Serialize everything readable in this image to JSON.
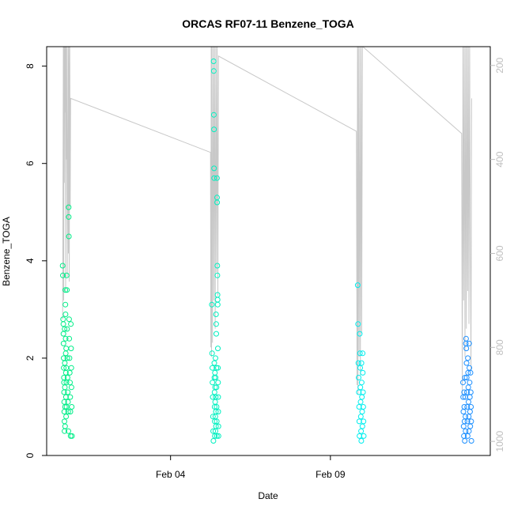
{
  "chart_data": {
    "type": "scatter",
    "title": "ORCAS RF07-11 Benzene_TOGA",
    "xlabel": "Date",
    "ylabel": "Benzene_TOGA",
    "xlim": [
      "2016-01-31T03:00",
      "2016-02-14T00:00"
    ],
    "ylim": [
      0,
      8.4
    ],
    "y_ticks": [
      0,
      2,
      4,
      6,
      8
    ],
    "x_ticks": [
      {
        "date": "2016-02-04",
        "label": "Feb 04"
      },
      {
        "date": "2016-02-09",
        "label": "Feb 09"
      }
    ],
    "y2lim": [
      1030,
      160
    ],
    "y2_ticks": [
      200,
      400,
      600,
      800,
      1000
    ],
    "y2_reversed": true,
    "y2_color": "#bebebe",
    "grid": false,
    "legend": "none",
    "point_marker": "open-circle",
    "series": [
      {
        "color": "#00ee88",
        "points": [
          [
            "2016-01-31T15:00",
            3.9
          ],
          [
            "2016-01-31T15:10",
            3.7
          ],
          [
            "2016-01-31T15:20",
            2.8
          ],
          [
            "2016-01-31T15:30",
            2.7
          ],
          [
            "2016-01-31T15:35",
            2.5
          ],
          [
            "2016-01-31T15:40",
            2.3
          ],
          [
            "2016-01-31T15:45",
            2.0
          ],
          [
            "2016-01-31T15:50",
            1.8
          ],
          [
            "2016-01-31T15:55",
            1.6
          ],
          [
            "2016-01-31T16:00",
            1.5
          ],
          [
            "2016-01-31T16:05",
            1.3
          ],
          [
            "2016-01-31T16:10",
            1.1
          ],
          [
            "2016-01-31T16:15",
            0.9
          ],
          [
            "2016-01-31T16:20",
            0.7
          ],
          [
            "2016-01-31T16:25",
            0.5
          ],
          [
            "2016-01-31T16:30",
            2.6
          ],
          [
            "2016-01-31T16:35",
            1.9
          ],
          [
            "2016-01-31T16:40",
            1.4
          ],
          [
            "2016-01-31T16:45",
            1.0
          ],
          [
            "2016-01-31T16:50",
            0.6
          ],
          [
            "2016-01-31T17:00",
            3.4
          ],
          [
            "2016-01-31T17:05",
            3.1
          ],
          [
            "2016-01-31T17:10",
            2.9
          ],
          [
            "2016-01-31T17:15",
            2.4
          ],
          [
            "2016-01-31T17:20",
            2.1
          ],
          [
            "2016-01-31T17:25",
            1.7
          ],
          [
            "2016-01-31T17:30",
            1.2
          ],
          [
            "2016-01-31T17:35",
            0.8
          ],
          [
            "2016-01-31T17:40",
            2.2
          ],
          [
            "2016-01-31T17:45",
            1.8
          ],
          [
            "2016-01-31T17:50",
            1.5
          ],
          [
            "2016-01-31T17:55",
            1.0
          ],
          [
            "2016-01-31T18:00",
            3.7
          ],
          [
            "2016-01-31T18:10",
            3.4
          ],
          [
            "2016-01-31T18:20",
            2.6
          ],
          [
            "2016-01-31T18:30",
            2.0
          ],
          [
            "2016-01-31T18:40",
            1.6
          ],
          [
            "2016-01-31T18:50",
            1.3
          ],
          [
            "2016-01-31T19:00",
            1.1
          ],
          [
            "2016-01-31T19:10",
            0.9
          ],
          [
            "2016-01-31T19:20",
            0.5
          ],
          [
            "2016-01-31T19:30",
            5.1
          ],
          [
            "2016-01-31T19:35",
            4.9
          ],
          [
            "2016-01-31T19:40",
            4.5
          ],
          [
            "2016-01-31T19:50",
            2.8
          ],
          [
            "2016-01-31T20:00",
            2.4
          ],
          [
            "2016-01-31T20:10",
            2.0
          ],
          [
            "2016-01-31T20:20",
            1.7
          ],
          [
            "2016-01-31T20:30",
            1.5
          ],
          [
            "2016-01-31T20:40",
            1.2
          ],
          [
            "2016-01-31T20:50",
            0.9
          ],
          [
            "2016-01-31T21:00",
            0.4
          ],
          [
            "2016-01-31T21:10",
            2.7
          ],
          [
            "2016-01-31T21:20",
            2.2
          ],
          [
            "2016-01-31T21:30",
            1.8
          ],
          [
            "2016-01-31T21:40",
            1.4
          ],
          [
            "2016-01-31T21:50",
            1.0
          ],
          [
            "2016-01-31T22:00",
            0.4
          ]
        ]
      },
      {
        "color": "#00f0c0",
        "points": [
          [
            "2016-02-05T07:00",
            3.1
          ],
          [
            "2016-02-05T07:10",
            2.1
          ],
          [
            "2016-02-05T07:20",
            1.8
          ],
          [
            "2016-02-05T07:30",
            1.5
          ],
          [
            "2016-02-05T07:40",
            1.2
          ],
          [
            "2016-02-05T07:50",
            0.8
          ],
          [
            "2016-02-05T08:00",
            0.5
          ],
          [
            "2016-02-05T08:10",
            0.3
          ],
          [
            "2016-02-05T08:20",
            8.1
          ],
          [
            "2016-02-05T08:25",
            7.9
          ],
          [
            "2016-02-05T08:30",
            7.0
          ],
          [
            "2016-02-05T08:35",
            6.7
          ],
          [
            "2016-02-05T08:40",
            5.9
          ],
          [
            "2016-02-05T08:45",
            5.7
          ],
          [
            "2016-02-05T08:50",
            1.9
          ],
          [
            "2016-02-05T08:55",
            1.6
          ],
          [
            "2016-02-05T09:00",
            1.3
          ],
          [
            "2016-02-05T09:05",
            1.0
          ],
          [
            "2016-02-05T09:10",
            0.7
          ],
          [
            "2016-02-05T09:15",
            0.4
          ],
          [
            "2016-02-05T09:20",
            1.7
          ],
          [
            "2016-02-05T09:25",
            1.4
          ],
          [
            "2016-02-05T09:30",
            1.1
          ],
          [
            "2016-02-05T09:35",
            0.8
          ],
          [
            "2016-02-05T09:40",
            0.5
          ],
          [
            "2016-02-05T09:45",
            2.0
          ],
          [
            "2016-02-05T09:50",
            1.6
          ],
          [
            "2016-02-05T09:55",
            1.2
          ],
          [
            "2016-02-05T10:00",
            0.9
          ],
          [
            "2016-02-05T10:05",
            0.6
          ],
          [
            "2016-02-05T10:10",
            2.9
          ],
          [
            "2016-02-05T10:15",
            2.7
          ],
          [
            "2016-02-05T10:20",
            2.5
          ],
          [
            "2016-02-05T10:25",
            1.8
          ],
          [
            "2016-02-05T10:30",
            1.4
          ],
          [
            "2016-02-05T10:35",
            1.0
          ],
          [
            "2016-02-05T10:40",
            0.7
          ],
          [
            "2016-02-05T10:45",
            0.4
          ],
          [
            "2016-02-05T10:50",
            5.7
          ],
          [
            "2016-02-05T10:55",
            5.3
          ],
          [
            "2016-02-05T11:00",
            5.2
          ],
          [
            "2016-02-05T11:05",
            3.9
          ],
          [
            "2016-02-05T11:10",
            3.7
          ],
          [
            "2016-02-05T11:15",
            3.3
          ],
          [
            "2016-02-05T11:20",
            3.2
          ],
          [
            "2016-02-05T11:25",
            3.1
          ],
          [
            "2016-02-05T11:30",
            2.2
          ],
          [
            "2016-02-05T11:35",
            1.8
          ],
          [
            "2016-02-05T11:40",
            1.5
          ],
          [
            "2016-02-05T11:45",
            1.2
          ],
          [
            "2016-02-05T11:50",
            0.9
          ],
          [
            "2016-02-05T11:55",
            0.6
          ],
          [
            "2016-02-05T12:00",
            0.4
          ]
        ]
      },
      {
        "color": "#00eeee",
        "points": [
          [
            "2016-02-09T20:30",
            3.5
          ],
          [
            "2016-02-09T20:45",
            2.7
          ],
          [
            "2016-02-09T21:00",
            1.9
          ],
          [
            "2016-02-09T21:10",
            1.6
          ],
          [
            "2016-02-09T21:20",
            1.3
          ],
          [
            "2016-02-09T21:30",
            1.0
          ],
          [
            "2016-02-09T21:40",
            0.7
          ],
          [
            "2016-02-09T21:50",
            0.4
          ],
          [
            "2016-02-09T22:00",
            2.5
          ],
          [
            "2016-02-09T22:10",
            2.1
          ],
          [
            "2016-02-09T22:20",
            1.8
          ],
          [
            "2016-02-09T22:30",
            1.4
          ],
          [
            "2016-02-09T22:40",
            1.1
          ],
          [
            "2016-02-09T22:50",
            0.8
          ],
          [
            "2016-02-09T23:00",
            0.5
          ],
          [
            "2016-02-09T23:10",
            0.3
          ],
          [
            "2016-02-09T23:20",
            1.9
          ],
          [
            "2016-02-09T23:30",
            1.5
          ],
          [
            "2016-02-09T23:40",
            1.2
          ],
          [
            "2016-02-09T23:50",
            0.9
          ],
          [
            "2016-02-10T00:00",
            0.6
          ],
          [
            "2016-02-10T00:10",
            2.1
          ],
          [
            "2016-02-10T00:20",
            1.7
          ],
          [
            "2016-02-10T00:30",
            1.3
          ],
          [
            "2016-02-10T00:40",
            1.0
          ],
          [
            "2016-02-10T00:50",
            0.7
          ],
          [
            "2016-02-10T01:00",
            0.4
          ]
        ]
      },
      {
        "color": "#1e90ff",
        "points": [
          [
            "2016-02-13T03:30",
            1.5
          ],
          [
            "2016-02-13T03:40",
            1.2
          ],
          [
            "2016-02-13T03:50",
            0.9
          ],
          [
            "2016-02-13T04:00",
            0.6
          ],
          [
            "2016-02-13T04:10",
            0.4
          ],
          [
            "2016-02-13T04:20",
            1.3
          ],
          [
            "2016-02-13T04:30",
            1.0
          ],
          [
            "2016-02-13T04:40",
            0.7
          ],
          [
            "2016-02-13T04:50",
            0.3
          ],
          [
            "2016-02-13T05:00",
            1.6
          ],
          [
            "2016-02-13T05:10",
            1.2
          ],
          [
            "2016-02-13T05:20",
            0.8
          ],
          [
            "2016-02-13T05:30",
            0.5
          ],
          [
            "2016-02-13T05:40",
            2.3
          ],
          [
            "2016-02-13T05:50",
            2.4
          ],
          [
            "2016-02-13T06:00",
            2.2
          ],
          [
            "2016-02-13T06:10",
            1.9
          ],
          [
            "2016-02-13T06:20",
            1.6
          ],
          [
            "2016-02-13T06:30",
            1.3
          ],
          [
            "2016-02-13T06:40",
            1.0
          ],
          [
            "2016-02-13T06:50",
            0.7
          ],
          [
            "2016-02-13T07:00",
            0.4
          ],
          [
            "2016-02-13T07:10",
            2.0
          ],
          [
            "2016-02-13T07:20",
            1.7
          ],
          [
            "2016-02-13T07:30",
            1.4
          ],
          [
            "2016-02-13T07:40",
            1.1
          ],
          [
            "2016-02-13T07:50",
            0.8
          ],
          [
            "2016-02-13T08:00",
            0.5
          ],
          [
            "2016-02-13T08:10",
            2.3
          ],
          [
            "2016-02-13T08:20",
            1.8
          ],
          [
            "2016-02-13T08:30",
            1.5
          ],
          [
            "2016-02-13T08:40",
            1.2
          ],
          [
            "2016-02-13T08:50",
            0.9
          ],
          [
            "2016-02-13T09:00",
            0.6
          ],
          [
            "2016-02-13T09:10",
            1.7
          ],
          [
            "2016-02-13T09:20",
            1.3
          ],
          [
            "2016-02-13T09:30",
            1.0
          ],
          [
            "2016-02-13T09:40",
            0.7
          ],
          [
            "2016-02-13T09:50",
            0.3
          ]
        ]
      }
    ],
    "secondary_line": {
      "color": "#c8c8c8",
      "points": [
        [
          "2016-01-31T15:00",
          740
        ],
        [
          "2016-01-31T15:15",
          500
        ],
        [
          "2016-01-31T15:30",
          160
        ],
        [
          "2016-01-31T15:45",
          700
        ],
        [
          "2016-01-31T16:00",
          160
        ],
        [
          "2016-01-31T16:15",
          450
        ],
        [
          "2016-01-31T16:30",
          160
        ],
        [
          "2016-01-31T16:45",
          300
        ],
        [
          "2016-01-31T17:00",
          160
        ],
        [
          "2016-01-31T17:15",
          680
        ],
        [
          "2016-01-31T17:30",
          160
        ],
        [
          "2016-01-31T17:45",
          400
        ],
        [
          "2016-01-31T18:00",
          160
        ],
        [
          "2016-01-31T18:30",
          650
        ],
        [
          "2016-01-31T19:00",
          160
        ],
        [
          "2016-01-31T19:20",
          600
        ],
        [
          "2016-01-31T19:40",
          160
        ],
        [
          "2016-01-31T20:00",
          660
        ],
        [
          "2016-01-31T20:20",
          160
        ],
        [
          "2016-01-31T20:40",
          500
        ],
        [
          "2016-01-31T21:00",
          270
        ],
        [
          "2016-02-05T06:00",
          385
        ],
        [
          "2016-02-05T06:15",
          800
        ],
        [
          "2016-02-05T06:30",
          160
        ],
        [
          "2016-02-05T06:45",
          820
        ],
        [
          "2016-02-05T07:00",
          160
        ],
        [
          "2016-02-05T07:30",
          790
        ],
        [
          "2016-02-05T08:00",
          160
        ],
        [
          "2016-02-05T08:30",
          700
        ],
        [
          "2016-02-05T09:00",
          160
        ],
        [
          "2016-02-05T09:30",
          760
        ],
        [
          "2016-02-05T10:00",
          160
        ],
        [
          "2016-02-05T10:30",
          640
        ],
        [
          "2016-02-05T11:00",
          160
        ],
        [
          "2016-02-05T11:30",
          690
        ],
        [
          "2016-02-05T12:00",
          180
        ],
        [
          "2016-02-09T19:30",
          340
        ],
        [
          "2016-02-09T20:00",
          880
        ],
        [
          "2016-02-09T20:20",
          160
        ],
        [
          "2016-02-09T20:40",
          900
        ],
        [
          "2016-02-09T21:00",
          160
        ],
        [
          "2016-02-09T21:30",
          820
        ],
        [
          "2016-02-09T22:00",
          160
        ],
        [
          "2016-02-09T22:30",
          860
        ],
        [
          "2016-02-09T23:00",
          160
        ],
        [
          "2016-02-09T23:30",
          770
        ],
        [
          "2016-02-10T00:00",
          160
        ],
        [
          "2016-02-10T00:20",
          160
        ],
        [
          "2016-02-13T02:30",
          345
        ],
        [
          "2016-02-13T03:00",
          900
        ],
        [
          "2016-02-13T03:30",
          160
        ],
        [
          "2016-02-13T04:00",
          700
        ],
        [
          "2016-02-13T04:30",
          160
        ],
        [
          "2016-02-13T05:00",
          820
        ],
        [
          "2016-02-13T05:30",
          160
        ],
        [
          "2016-02-13T06:00",
          760
        ],
        [
          "2016-02-13T06:30",
          160
        ],
        [
          "2016-02-13T07:00",
          680
        ],
        [
          "2016-02-13T07:30",
          160
        ],
        [
          "2016-02-13T08:00",
          750
        ],
        [
          "2016-02-13T08:30",
          160
        ],
        [
          "2016-02-13T09:00",
          560
        ],
        [
          "2016-02-13T09:30",
          850
        ],
        [
          "2016-02-13T10:00",
          270
        ]
      ]
    }
  }
}
